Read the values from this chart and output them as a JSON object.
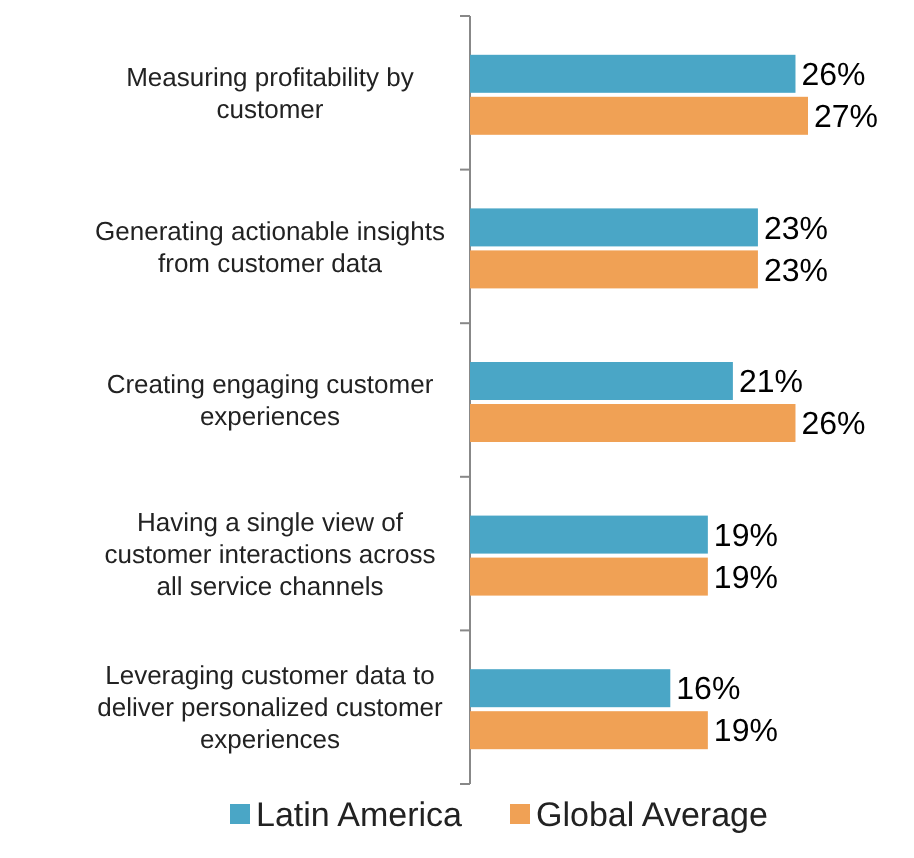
{
  "chart_data": {
    "type": "bar",
    "orientation": "horizontal",
    "relative": false,
    "categories": [
      "Measuring  profitability by customer",
      "Generating actionable insights from customer data",
      "Creating engaging customer experiences",
      "Having a single view of customer interactions across all service channels",
      "Leveraging customer data to deliver personalized customer experiences"
    ],
    "series": [
      {
        "name": "Latin America",
        "color": "#4aa6c6",
        "values": [
          26,
          23,
          21,
          19,
          16
        ],
        "value_labels": [
          "26%",
          "23%",
          "21%",
          "19%",
          "16%"
        ]
      },
      {
        "name": "Global Average",
        "color": "#f0a155",
        "values": [
          27,
          23,
          26,
          19,
          19
        ],
        "value_labels": [
          "27%",
          "23%",
          "26%",
          "19%",
          "19%"
        ]
      }
    ],
    "legend": "bottom"
  }
}
